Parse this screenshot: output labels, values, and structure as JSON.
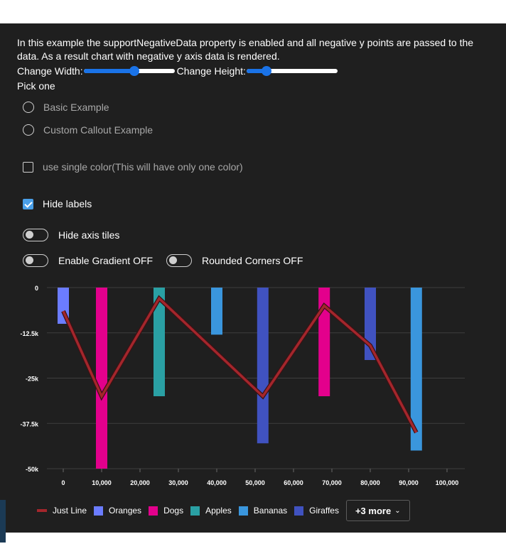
{
  "description": "In this example the supportNegativeData property is enabled and all negative y points are passed to the data. As a result chart with negative y axis data is rendered.",
  "controls": {
    "width_label": "Change Width:",
    "width_value": 0.56,
    "height_label": "Change Height:",
    "height_value": 0.22,
    "pick_label": "Pick one",
    "radio_options": [
      {
        "label": "Basic Example",
        "selected": false
      },
      {
        "label": "Custom Callout Example",
        "selected": false
      }
    ],
    "single_color": {
      "label": "use single color(This will have only one color)",
      "checked": false
    },
    "hide_labels": {
      "label": "Hide labels",
      "checked": true
    },
    "hide_axis_tiles": {
      "label": "Hide axis tiles",
      "on": false
    },
    "gradient": {
      "label": "Enable Gradient OFF",
      "on": false
    },
    "rounded": {
      "label": "Rounded Corners OFF",
      "on": false
    }
  },
  "colors": {
    "panel_bg": "#1f1f1f",
    "accent": "#1a73e8",
    "line": "#a4262c"
  },
  "chart_data": {
    "type": "bar",
    "xlim": [
      0,
      100000
    ],
    "ylim": [
      -50000,
      0
    ],
    "x_ticks": [
      "0",
      "10,000",
      "20,000",
      "30,000",
      "40,000",
      "50,000",
      "60,000",
      "70,000",
      "80,000",
      "90,000",
      "100,000"
    ],
    "x_tick_values": [
      0,
      10000,
      20000,
      30000,
      40000,
      50000,
      60000,
      70000,
      80000,
      90000,
      100000
    ],
    "y_ticks": [
      "0",
      "-12.5k",
      "-25k",
      "-37.5k",
      "-50k"
    ],
    "y_tick_values": [
      0,
      -12500,
      -25000,
      -37500,
      -50000
    ],
    "bars": [
      {
        "x": 0,
        "y": -10000,
        "color": "#6b7cff"
      },
      {
        "x": 10000,
        "y": -50000,
        "color": "#e3008c"
      },
      {
        "x": 25000,
        "y": -30000,
        "color": "#2aa0a4"
      },
      {
        "x": 40000,
        "y": -13000,
        "color": "#3a96dd"
      },
      {
        "x": 52000,
        "y": -43000,
        "color": "#4052c0"
      },
      {
        "x": 68000,
        "y": -30000,
        "color": "#e3008c"
      },
      {
        "x": 80000,
        "y": -20000,
        "color": "#4052c0"
      },
      {
        "x": 92000,
        "y": -45000,
        "color": "#3a96dd"
      }
    ],
    "line": {
      "name": "Just Line",
      "color": "#a4262c",
      "points": [
        {
          "x": 0,
          "y": -6500
        },
        {
          "x": 10000,
          "y": -30000
        },
        {
          "x": 25000,
          "y": -3000
        },
        {
          "x": 52000,
          "y": -30000
        },
        {
          "x": 68000,
          "y": -5000
        },
        {
          "x": 80000,
          "y": -16000
        },
        {
          "x": 92000,
          "y": -40000
        }
      ]
    },
    "legend": [
      {
        "name": "Just Line",
        "color": "#a4262c",
        "kind": "line"
      },
      {
        "name": "Oranges",
        "color": "#6b7cff",
        "kind": "box"
      },
      {
        "name": "Dogs",
        "color": "#e3008c",
        "kind": "box"
      },
      {
        "name": "Apples",
        "color": "#2aa0a4",
        "kind": "box"
      },
      {
        "name": "Bananas",
        "color": "#3a96dd",
        "kind": "box"
      },
      {
        "name": "Giraffes",
        "color": "#4052c0",
        "kind": "box"
      }
    ],
    "legend_more": "+3 more"
  }
}
